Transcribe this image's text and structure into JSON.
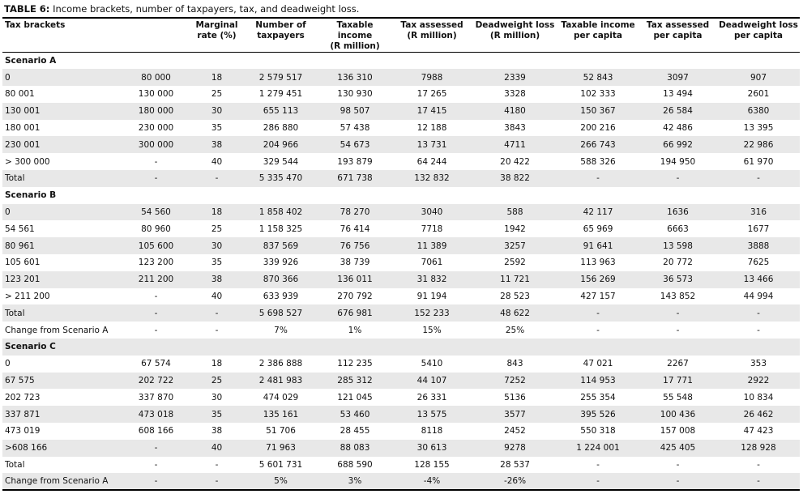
{
  "title_label": "TABLE 6:",
  "title_text": "Income brackets, number of taxpayers, tax, and deadweight loss.",
  "table": {
    "header": [
      [
        "Tax brackets"
      ],
      [
        "Marginal",
        "rate (%)"
      ],
      [
        "Number of",
        "taxpayers"
      ],
      [
        "Taxable income",
        "(R million)"
      ],
      [
        "Tax assessed",
        "(R million)"
      ],
      [
        "Deadweight loss",
        "(R million)"
      ],
      [
        "Taxable income",
        "per capita"
      ],
      [
        "Tax assessed",
        "per capita"
      ],
      [
        "Deadweight loss",
        "per capita"
      ]
    ],
    "sections": [
      {
        "title": "Scenario A",
        "rows": [
          [
            "0",
            "80 000",
            "18",
            "2 579 517",
            "136 310",
            "7988",
            "2339",
            "52 843",
            "3097",
            "907"
          ],
          [
            "80 001",
            "130 000",
            "25",
            "1 279 451",
            "130 930",
            "17 265",
            "3328",
            "102 333",
            "13 494",
            "2601"
          ],
          [
            "130 001",
            "180 000",
            "30",
            "655 113",
            "98 507",
            "17 415",
            "4180",
            "150 367",
            "26 584",
            "6380"
          ],
          [
            "180 001",
            "230 000",
            "35",
            "286 880",
            "57 438",
            "12 188",
            "3843",
            "200 216",
            "42 486",
            "13 395"
          ],
          [
            "230 001",
            "300 000",
            "38",
            "204 966",
            "54 673",
            "13 731",
            "4711",
            "266 743",
            "66 992",
            "22 986"
          ],
          [
            "> 300 000",
            "-",
            "40",
            "329 544",
            "193 879",
            "64 244",
            "20 422",
            "588 326",
            "194 950",
            "61 970"
          ],
          [
            "Total",
            "-",
            "-",
            "5 335 470",
            "671 738",
            "132 832",
            "38 822",
            "-",
            "-",
            "-"
          ]
        ]
      },
      {
        "title": "Scenario B",
        "rows": [
          [
            "0",
            "54 560",
            "18",
            "1 858 402",
            "78 270",
            "3040",
            "588",
            "42 117",
            "1636",
            "316"
          ],
          [
            "54 561",
            "80 960",
            "25",
            "1 158 325",
            "76 414",
            "7718",
            "1942",
            "65 969",
            "6663",
            "1677"
          ],
          [
            "80 961",
            "105 600",
            "30",
            "837 569",
            "76 756",
            "11 389",
            "3257",
            "91 641",
            "13 598",
            "3888"
          ],
          [
            "105 601",
            "123 200",
            "35",
            "339 926",
            "38 739",
            "7061",
            "2592",
            "113 963",
            "20 772",
            "7625"
          ],
          [
            "123 201",
            "211 200",
            "38",
            "870 366",
            "136 011",
            "31 832",
            "11 721",
            "156 269",
            "36 573",
            "13 466"
          ],
          [
            "> 211 200",
            "-",
            "40",
            "633 939",
            "270 792",
            "91 194",
            "28 523",
            "427 157",
            "143 852",
            "44 994"
          ],
          [
            "Total",
            "-",
            "-",
            "5 698 527",
            "676 981",
            "152 233",
            "48 622",
            "-",
            "-",
            "-"
          ],
          [
            "Change from Scenario A",
            "-",
            "-",
            "7%",
            "1%",
            "15%",
            "25%",
            "-",
            "-",
            "-"
          ]
        ]
      },
      {
        "title": "Scenario C",
        "rows": [
          [
            "0",
            "67 574",
            "18",
            "2 386 888",
            "112 235",
            "5410",
            "843",
            "47 021",
            "2267",
            "353"
          ],
          [
            "67 575",
            "202 722",
            "25",
            "2 481 983",
            "285 312",
            "44 107",
            "7252",
            "114 953",
            "17 771",
            "2922"
          ],
          [
            "202 723",
            "337 870",
            "30",
            "474 029",
            "121 045",
            "26 331",
            "5136",
            "255 354",
            "55 548",
            "10 834"
          ],
          [
            "337 871",
            "473 018",
            "35",
            "135 161",
            "53 460",
            "13 575",
            "3577",
            "395 526",
            "100 436",
            "26 462"
          ],
          [
            "473 019",
            "608 166",
            "38",
            "51 706",
            "28 455",
            "8118",
            "2452",
            "550 318",
            "157 008",
            "47 423"
          ],
          [
            ">608 166",
            "-",
            "40",
            "71 963",
            "88 083",
            "30 613",
            "9278",
            "1 224 001",
            "425 405",
            "128 928"
          ],
          [
            "Total",
            "-",
            "-",
            "5 601 731",
            "688 590",
            "128 155",
            "28 537",
            "-",
            "-",
            "-"
          ],
          [
            "Change from Scenario A",
            "-",
            "-",
            "5%",
            "3%",
            "-4%",
            "-26%",
            "-",
            "-",
            "-"
          ]
        ]
      }
    ]
  }
}
